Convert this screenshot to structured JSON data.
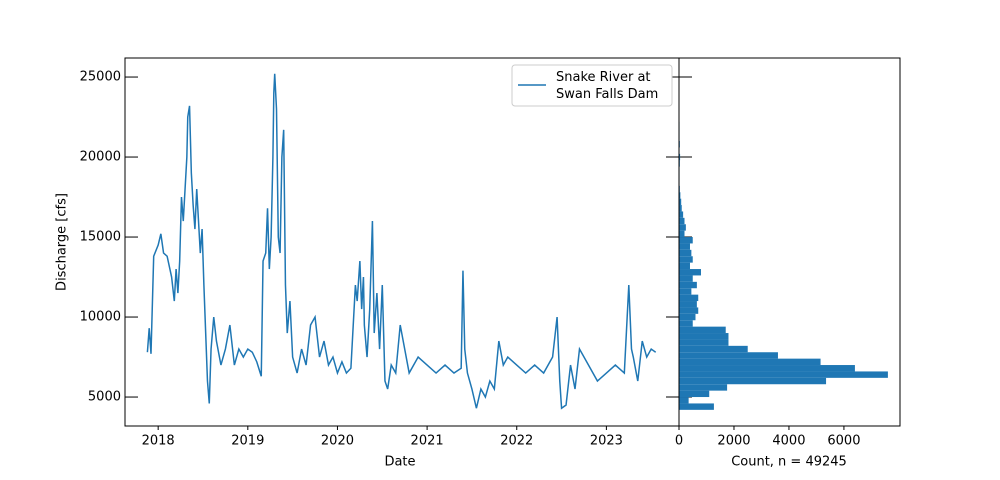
{
  "chart_data": [
    {
      "type": "line",
      "x_label": "Date",
      "y_label": "Discharge [cfs]",
      "x": [
        2017.88,
        2017.9,
        2017.92,
        2017.95,
        2018.0,
        2018.03,
        2018.06,
        2018.1,
        2018.15,
        2018.18,
        2018.2,
        2018.22,
        2018.24,
        2018.26,
        2018.28,
        2018.3,
        2018.32,
        2018.33,
        2018.35,
        2018.37,
        2018.39,
        2018.41,
        2018.43,
        2018.45,
        2018.47,
        2018.49,
        2018.51,
        2018.53,
        2018.55,
        2018.57,
        2018.59,
        2018.62,
        2018.65,
        2018.7,
        2018.75,
        2018.8,
        2018.85,
        2018.9,
        2018.95,
        2019.0,
        2019.05,
        2019.1,
        2019.15,
        2019.17,
        2019.2,
        2019.22,
        2019.24,
        2019.26,
        2019.28,
        2019.29,
        2019.3,
        2019.32,
        2019.34,
        2019.36,
        2019.38,
        2019.4,
        2019.42,
        2019.44,
        2019.47,
        2019.5,
        2019.55,
        2019.6,
        2019.65,
        2019.7,
        2019.75,
        2019.8,
        2019.85,
        2019.9,
        2019.95,
        2020.0,
        2020.05,
        2020.1,
        2020.15,
        2020.2,
        2020.22,
        2020.25,
        2020.27,
        2020.29,
        2020.3,
        2020.33,
        2020.36,
        2020.39,
        2020.41,
        2020.44,
        2020.47,
        2020.5,
        2020.53,
        2020.56,
        2020.6,
        2020.65,
        2020.7,
        2020.75,
        2020.8,
        2020.9,
        2021.0,
        2021.1,
        2021.2,
        2021.3,
        2021.38,
        2021.4,
        2021.42,
        2021.45,
        2021.5,
        2021.55,
        2021.6,
        2021.65,
        2021.7,
        2021.75,
        2021.8,
        2021.85,
        2021.9,
        2022.0,
        2022.1,
        2022.2,
        2022.3,
        2022.4,
        2022.45,
        2022.48,
        2022.5,
        2022.55,
        2022.6,
        2022.65,
        2022.7,
        2022.8,
        2022.9,
        2023.0,
        2023.1,
        2023.2,
        2023.25,
        2023.28,
        2023.3,
        2023.35,
        2023.4,
        2023.45,
        2023.5,
        2023.55
      ],
      "series": [
        {
          "name": "Snake River at\nSwan Falls Dam",
          "color": "#1f77b4",
          "values": [
            7800,
            9300,
            7700,
            13800,
            14500,
            15200,
            14000,
            13800,
            12500,
            11000,
            13000,
            11500,
            13500,
            17500,
            16000,
            18000,
            20000,
            22500,
            23200,
            19000,
            17000,
            15500,
            18000,
            16000,
            14000,
            15500,
            12000,
            9000,
            6000,
            4600,
            8000,
            10000,
            8500,
            7000,
            8000,
            9500,
            7000,
            8000,
            7500,
            8000,
            7800,
            7200,
            6300,
            13500,
            14000,
            16800,
            13000,
            15000,
            20000,
            24000,
            25200,
            23000,
            15000,
            14000,
            20000,
            21700,
            12000,
            9000,
            11000,
            7500,
            6500,
            8000,
            7000,
            9500,
            10000,
            7500,
            8500,
            7000,
            7500,
            6500,
            7200,
            6500,
            6800,
            12000,
            11000,
            13500,
            10500,
            12500,
            9500,
            7500,
            10500,
            16000,
            9000,
            11500,
            8000,
            12000,
            6000,
            5500,
            7000,
            6500,
            9500,
            8000,
            6500,
            7500,
            7000,
            6500,
            7000,
            6500,
            6800,
            12900,
            8000,
            6500,
            5500,
            4300,
            5500,
            5000,
            6000,
            5500,
            8500,
            7000,
            7500,
            7000,
            6500,
            7000,
            6500,
            7500,
            10000,
            6000,
            4300,
            4500,
            7000,
            5500,
            8000,
            7000,
            6000,
            6500,
            7000,
            6500,
            12000,
            8000,
            7500,
            6000,
            8500,
            7500,
            8000,
            7800
          ]
        }
      ],
      "xlim": [
        2017.63,
        2023.81
      ],
      "xticks": [
        2018,
        2019,
        2020,
        2021,
        2022,
        2023
      ],
      "ylim": [
        3190,
        26190
      ],
      "yticks": [
        5000,
        10000,
        15000,
        20000,
        25000
      ],
      "legend": "upper right"
    },
    {
      "type": "histogram",
      "orientation": "horizontal",
      "color": "#1f77b4",
      "x_label": "Count, n = 49245",
      "bins": [
        4200,
        4600,
        5000,
        5400,
        5800,
        6200,
        6600,
        7000,
        7400,
        7800,
        8200,
        8600,
        9000,
        9400,
        9800,
        10200,
        10600,
        11000,
        11400,
        11800,
        12200,
        12600,
        13000,
        13400,
        13800,
        14200,
        14600,
        15000,
        15400,
        15800,
        16200,
        16600,
        17000,
        17400,
        17800,
        18200,
        18600,
        19000,
        19400,
        19800,
        20200,
        20600,
        21000,
        21400,
        21800,
        22200,
        22600,
        23000,
        23400,
        23800,
        24200,
        24600,
        25000,
        25400
      ],
      "values": [
        1270,
        350,
        1100,
        1750,
        5350,
        7600,
        6400,
        5150,
        3600,
        2500,
        1800,
        1800,
        1700,
        500,
        600,
        700,
        650,
        700,
        450,
        650,
        500,
        800,
        400,
        500,
        450,
        400,
        500,
        200,
        250,
        200,
        150,
        100,
        80,
        50,
        30,
        20,
        20,
        20,
        30,
        40,
        20,
        30,
        20,
        20,
        20,
        10,
        10,
        10,
        10,
        5,
        5,
        5,
        5
      ],
      "xlim": [
        0,
        8040
      ],
      "xticks": [
        0,
        2000,
        4000,
        6000
      ],
      "ylim": [
        3190,
        26190
      ]
    }
  ]
}
